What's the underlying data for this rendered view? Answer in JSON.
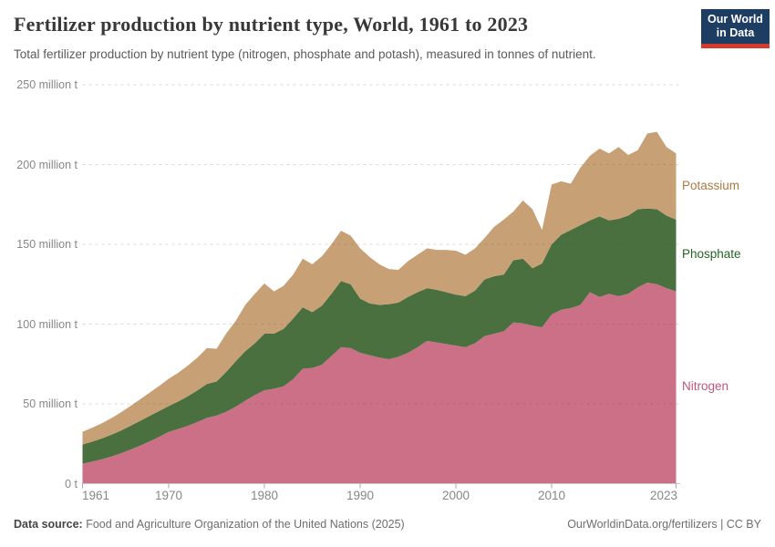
{
  "header": {
    "title": "Fertilizer production by nutrient type, World, 1961 to 2023",
    "subtitle": "Total fertilizer production by nutrient type (nitrogen, phosphate and potash), measured in tonnes of nutrient.",
    "logo": {
      "line1": "Our World",
      "line2": "in Data",
      "bg_color": "#1d3d63",
      "bar_color": "#d4392c"
    }
  },
  "chart_data": {
    "type": "area",
    "stacked": true,
    "title": "Fertilizer production by nutrient type, World, 1961 to 2023",
    "unit": "million tonnes of nutrient",
    "xlabel": "",
    "ylabel": "million t",
    "ylim": [
      0,
      250
    ],
    "grid": "dashed",
    "legend_position": "right-edge-labels",
    "x": [
      1961,
      1962,
      1963,
      1964,
      1965,
      1966,
      1967,
      1968,
      1969,
      1970,
      1971,
      1972,
      1973,
      1974,
      1975,
      1976,
      1977,
      1978,
      1979,
      1980,
      1981,
      1982,
      1983,
      1984,
      1985,
      1986,
      1987,
      1988,
      1989,
      1990,
      1991,
      1992,
      1993,
      1994,
      1995,
      1996,
      1997,
      1998,
      1999,
      2000,
      2001,
      2002,
      2003,
      2004,
      2005,
      2006,
      2007,
      2008,
      2009,
      2010,
      2011,
      2012,
      2013,
      2014,
      2015,
      2016,
      2017,
      2018,
      2019,
      2020,
      2021,
      2022,
      2023
    ],
    "series": [
      {
        "name": "Nitrogen",
        "color": "#cb7086",
        "label_color": "#c0567d",
        "values": [
          12.5,
          13.8,
          15.2,
          17,
          19,
          21.3,
          23.8,
          26.4,
          29.3,
          32.4,
          34.2,
          36.2,
          38.6,
          41.2,
          42.6,
          45,
          48.2,
          52,
          55.5,
          58.5,
          59.5,
          61,
          65.5,
          72,
          72.5,
          74.5,
          80,
          85.5,
          85,
          82,
          80.5,
          79,
          78,
          79.5,
          82,
          85.5,
          89.5,
          88.5,
          87.5,
          86.5,
          85.5,
          88,
          92.5,
          94,
          95.5,
          101,
          100.5,
          99,
          98,
          106,
          109,
          110,
          112,
          120,
          117,
          119,
          117.5,
          119,
          123,
          126,
          125,
          122.5,
          120.5
        ]
      },
      {
        "name": "Phosphate",
        "color": "#4a703f",
        "label_color": "#276327",
        "values": [
          12,
          12.5,
          13.1,
          13.6,
          14.2,
          14.9,
          15.5,
          16,
          16.2,
          16.2,
          17.3,
          18.6,
          19.8,
          21.3,
          21.4,
          25,
          28.5,
          31,
          32.5,
          35.5,
          34.5,
          36,
          38,
          38.5,
          35,
          37,
          39,
          41.5,
          40,
          34,
          32.5,
          33,
          34.5,
          34,
          35,
          34.5,
          33,
          33,
          32.5,
          32,
          32,
          33,
          35.5,
          36,
          35.5,
          39,
          40.5,
          36,
          40,
          44,
          47,
          49,
          50,
          45,
          50.5,
          46,
          48.5,
          49,
          49,
          46.5,
          47,
          45.5,
          45
        ]
      },
      {
        "name": "Potassium",
        "color": "#c8a076",
        "label_color": "#aa7b43",
        "values": [
          8,
          8.7,
          9.5,
          10.4,
          11.4,
          12.4,
          13.5,
          14.6,
          15.7,
          17.1,
          18,
          19.2,
          20.6,
          22.5,
          20.5,
          24,
          25.3,
          29,
          31,
          31.5,
          26.5,
          27,
          27.5,
          30.5,
          30,
          31,
          31,
          31.5,
          30.5,
          31.5,
          29,
          25.5,
          22,
          20.5,
          22.5,
          23.5,
          25,
          25,
          26.5,
          27.5,
          26,
          26.5,
          26,
          31,
          34.5,
          30.5,
          36.5,
          37,
          21,
          37.5,
          33.5,
          29,
          36,
          40.5,
          42.5,
          42,
          45,
          38,
          37,
          47,
          48.5,
          43,
          41.5
        ]
      }
    ],
    "yticks": [
      {
        "value": 250,
        "label": "250 million t"
      },
      {
        "value": 200,
        "label": "200 million t"
      },
      {
        "value": 150,
        "label": "150 million t"
      },
      {
        "value": 100,
        "label": "100 million t"
      },
      {
        "value": 50,
        "label": "50 million t"
      },
      {
        "value": 0,
        "label": "0 t"
      }
    ],
    "xticks": [
      1961,
      1970,
      1980,
      1990,
      2000,
      2010,
      2023
    ]
  },
  "footer": {
    "source_label": "Data source:",
    "source_text": " Food and Agriculture Organization of the United Nations (2025)",
    "attribution": "OurWorldinData.org/fertilizers | CC BY"
  }
}
